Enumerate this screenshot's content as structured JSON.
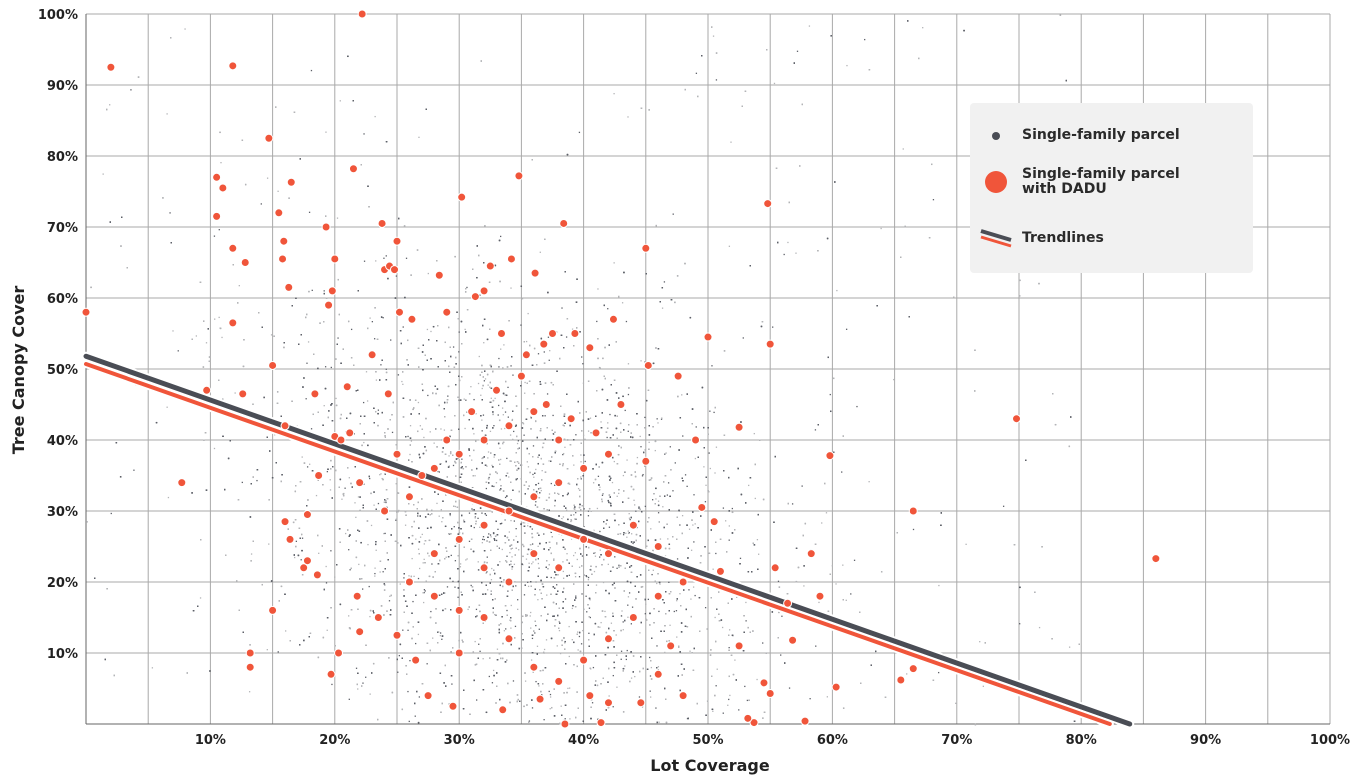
{
  "chart_data": {
    "type": "scatter",
    "xlabel": "Lot Coverage",
    "ylabel": "Tree Canopy Cover",
    "xlim": [
      0,
      100
    ],
    "ylim": [
      0,
      100
    ],
    "grid": true,
    "legend_position": "top-right",
    "x_ticks": [
      "10%",
      "20%",
      "30%",
      "40%",
      "50%",
      "60%",
      "70%",
      "80%",
      "90%",
      "100%"
    ],
    "y_ticks": [
      "10%",
      "20%",
      "30%",
      "40%",
      "50%",
      "60%",
      "70%",
      "80%",
      "90%",
      "100%"
    ],
    "colors": {
      "parcel": "#4a4d55",
      "dadu": "#f0553a"
    },
    "series": [
      {
        "name": "Single-family parcel",
        "kind": "dense_cloud",
        "center": [
          35,
          28
        ],
        "approx_points": 45000
      },
      {
        "name": "Single-family parcel with DADU",
        "points": [
          [
            0,
            58
          ],
          [
            2,
            92.5
          ],
          [
            10.5,
            77
          ],
          [
            11,
            75.5
          ],
          [
            10.5,
            71.5
          ],
          [
            11.8,
            92.7
          ],
          [
            11.8,
            67
          ],
          [
            11.8,
            56.5
          ],
          [
            12.6,
            46.5
          ],
          [
            12.8,
            65
          ],
          [
            14.7,
            82.5
          ],
          [
            15,
            50.5
          ],
          [
            15.5,
            72
          ],
          [
            15.9,
            68
          ],
          [
            15.8,
            65.5
          ],
          [
            16.5,
            76.3
          ],
          [
            16.3,
            61.5
          ],
          [
            16,
            42
          ],
          [
            9.7,
            47
          ],
          [
            7.7,
            34
          ],
          [
            13.2,
            10
          ],
          [
            13.2,
            8
          ],
          [
            15,
            16
          ],
          [
            16,
            28.5
          ],
          [
            16.4,
            26
          ],
          [
            17.5,
            22
          ],
          [
            17.8,
            23
          ],
          [
            17.8,
            29.5
          ],
          [
            18.4,
            46.5
          ],
          [
            18.7,
            35
          ],
          [
            18.6,
            21
          ],
          [
            19.3,
            70
          ],
          [
            19.5,
            59
          ],
          [
            19.8,
            61
          ],
          [
            20,
            65.5
          ],
          [
            20,
            40.5
          ],
          [
            20.5,
            40
          ],
          [
            19.7,
            7
          ],
          [
            20.3,
            10
          ],
          [
            21.5,
            78.2
          ],
          [
            21,
            47.5
          ],
          [
            21.2,
            41
          ],
          [
            21.8,
            18
          ],
          [
            22,
            13
          ],
          [
            22.2,
            100
          ],
          [
            23.8,
            70.5
          ],
          [
            24,
            64
          ],
          [
            24.4,
            64.5
          ],
          [
            24.8,
            64
          ],
          [
            25,
            68
          ],
          [
            25.2,
            58
          ],
          [
            23,
            52
          ],
          [
            24.3,
            46.5
          ],
          [
            26.2,
            57
          ],
          [
            28.4,
            63.2
          ],
          [
            29,
            58
          ],
          [
            30.2,
            74.2
          ],
          [
            31.3,
            60.2
          ],
          [
            32,
            61
          ],
          [
            32.5,
            64.5
          ],
          [
            33.4,
            55
          ],
          [
            34.2,
            65.5
          ],
          [
            34.8,
            77.2
          ],
          [
            35.4,
            52
          ],
          [
            36.1,
            63.5
          ],
          [
            36.8,
            53.5
          ],
          [
            37.5,
            55
          ],
          [
            38.4,
            70.5
          ],
          [
            39.3,
            55
          ],
          [
            40.5,
            53
          ],
          [
            42.4,
            57
          ],
          [
            45,
            67
          ],
          [
            45.2,
            50.5
          ],
          [
            47.6,
            49
          ],
          [
            50,
            54.5
          ],
          [
            52.5,
            41.8
          ],
          [
            54.8,
            73.3
          ],
          [
            55,
            53.5
          ],
          [
            59.8,
            37.8
          ],
          [
            60.3,
            5.2
          ],
          [
            65.5,
            6.2
          ],
          [
            66.5,
            30
          ],
          [
            66.5,
            7.8
          ],
          [
            74.8,
            43
          ],
          [
            86,
            23.3
          ],
          [
            57.8,
            0.4
          ],
          [
            56.8,
            11.8
          ],
          [
            55.4,
            22
          ],
          [
            53.7,
            0.2
          ],
          [
            53.2,
            0.8
          ],
          [
            54.5,
            5.8
          ],
          [
            55,
            4.3
          ],
          [
            56.4,
            17
          ],
          [
            58.3,
            24
          ],
          [
            59,
            18
          ],
          [
            52.5,
            11
          ],
          [
            51,
            21.5
          ],
          [
            49.5,
            30.5
          ],
          [
            49,
            40
          ],
          [
            50.5,
            28.5
          ],
          [
            45,
            37
          ],
          [
            46,
            25
          ],
          [
            43,
            45
          ],
          [
            41.4,
            0.2
          ],
          [
            38.5,
            0
          ],
          [
            40.5,
            4
          ],
          [
            42,
            3
          ],
          [
            44.6,
            3
          ],
          [
            46,
            7
          ],
          [
            47,
            11
          ],
          [
            48,
            4
          ],
          [
            36.5,
            3.5
          ],
          [
            33.5,
            2
          ],
          [
            29.5,
            2.5
          ],
          [
            27.5,
            4
          ],
          [
            26.5,
            9
          ],
          [
            25,
            12.5
          ],
          [
            23.5,
            15
          ],
          [
            30,
            10
          ],
          [
            32,
            15
          ],
          [
            34,
            12
          ],
          [
            36,
            8
          ],
          [
            38,
            6
          ],
          [
            40,
            9
          ],
          [
            42,
            12
          ],
          [
            44,
            15
          ],
          [
            46,
            18
          ],
          [
            48,
            20
          ],
          [
            28,
            24
          ],
          [
            30,
            26
          ],
          [
            32,
            28
          ],
          [
            34,
            30
          ],
          [
            36,
            32
          ],
          [
            38,
            34
          ],
          [
            40,
            36
          ],
          [
            42,
            38
          ],
          [
            27,
            35
          ],
          [
            29,
            40
          ],
          [
            31,
            44
          ],
          [
            33,
            47
          ],
          [
            35,
            49
          ],
          [
            37,
            45
          ],
          [
            39,
            43
          ],
          [
            41,
            41
          ],
          [
            26,
            20
          ],
          [
            28,
            18
          ],
          [
            30,
            16
          ],
          [
            32,
            22
          ],
          [
            34,
            20
          ],
          [
            36,
            24
          ],
          [
            38,
            22
          ],
          [
            40,
            26
          ],
          [
            42,
            24
          ],
          [
            44,
            28
          ],
          [
            24,
            30
          ],
          [
            26,
            32
          ],
          [
            28,
            36
          ],
          [
            30,
            38
          ],
          [
            32,
            40
          ],
          [
            34,
            42
          ],
          [
            36,
            44
          ],
          [
            38,
            40
          ],
          [
            22,
            34
          ],
          [
            25,
            38
          ]
        ]
      }
    ],
    "trendlines": [
      {
        "name": "Single-family parcel",
        "from": [
          0,
          51.8
        ],
        "to": [
          83.9,
          0
        ]
      },
      {
        "name": "Single-family parcel with DADU",
        "from": [
          0,
          50.7
        ],
        "to": [
          82.3,
          0
        ]
      }
    ]
  },
  "legend": {
    "items": [
      {
        "label_lines": [
          "Single-family parcel"
        ],
        "symbol": "small-dot"
      },
      {
        "label_lines": [
          "Single-family parcel",
          "with DADU"
        ],
        "symbol": "large-dot"
      },
      {
        "label_lines": [
          "Trendlines"
        ],
        "symbol": "lines"
      }
    ]
  }
}
